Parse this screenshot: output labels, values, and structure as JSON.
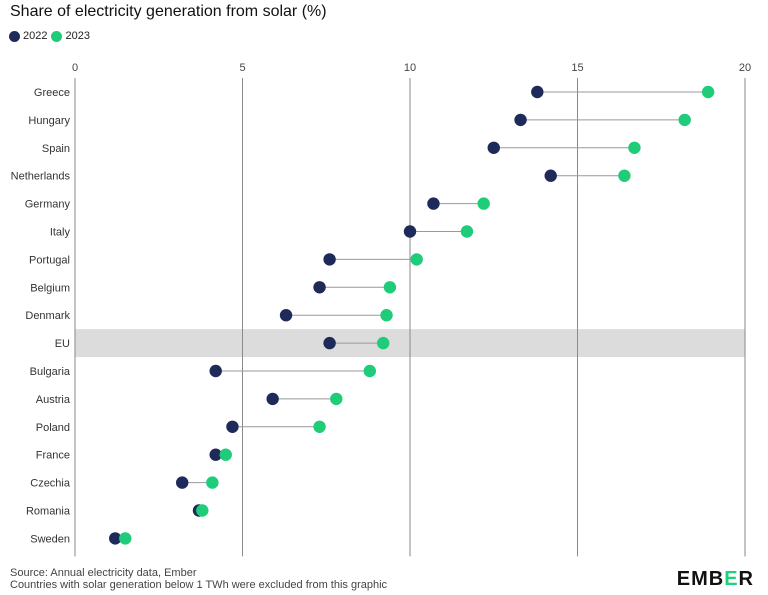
{
  "title": "Share of electricity generation from solar (%)",
  "legend": [
    {
      "label": "2022",
      "color": "#1e2a5a"
    },
    {
      "label": "2023",
      "color": "#1ecc79"
    }
  ],
  "footer": {
    "source": "Source: Annual electricity data, Ember",
    "note": "Countries with solar generation below 1 TWh were excluded from this graphic"
  },
  "logo": {
    "prefix": "EMB",
    "accent": "E",
    "suffix": "R"
  },
  "colors": {
    "y2022": "#1e2a5a",
    "y2023": "#1ecc79",
    "grid": "#8a8a8a",
    "connector": "#999999",
    "highlight": "#dcdcdc"
  },
  "chart_data": {
    "type": "scatter",
    "subtype": "dumbbell",
    "title": "Share of electricity generation from solar (%)",
    "xlabel": "",
    "ylabel": "",
    "xlim": [
      0,
      20
    ],
    "xticks": [
      0,
      5,
      10,
      15,
      20
    ],
    "grid": true,
    "legend_position": "top-left",
    "highlight_category": "EU",
    "categories": [
      "Greece",
      "Hungary",
      "Spain",
      "Netherlands",
      "Germany",
      "Italy",
      "Portugal",
      "Belgium",
      "Denmark",
      "EU",
      "Bulgaria",
      "Austria",
      "Poland",
      "France",
      "Czechia",
      "Romania",
      "Sweden"
    ],
    "series": [
      {
        "name": "2022",
        "values": [
          13.8,
          13.3,
          12.5,
          14.2,
          10.7,
          10.0,
          7.6,
          7.3,
          6.3,
          7.6,
          4.2,
          5.9,
          4.7,
          4.2,
          3.2,
          3.7,
          1.2
        ]
      },
      {
        "name": "2023",
        "values": [
          18.9,
          18.2,
          16.7,
          16.4,
          12.2,
          11.7,
          10.2,
          9.4,
          9.3,
          9.2,
          8.8,
          7.8,
          7.3,
          4.5,
          4.1,
          3.8,
          1.5
        ]
      }
    ]
  }
}
